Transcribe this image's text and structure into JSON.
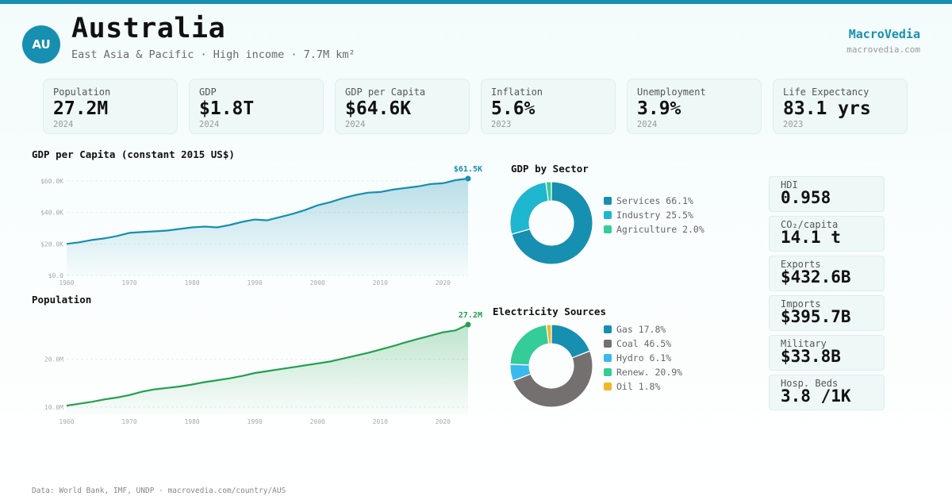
{
  "header": {
    "code": "AU",
    "country": "Australia",
    "subtitle": "East Asia & Pacific · High income · 7.7M km²",
    "brand": "MacroVedia",
    "brand_url": "macrovedia.com"
  },
  "kpis": [
    {
      "label": "Population",
      "value": "27.2M",
      "year": "2024"
    },
    {
      "label": "GDP",
      "value": "$1.8T",
      "year": "2024"
    },
    {
      "label": "GDP per Capita",
      "value": "$64.6K",
      "year": "2024"
    },
    {
      "label": "Inflation",
      "value": "5.6%",
      "year": "2023"
    },
    {
      "label": "Unemployment",
      "value": "3.9%",
      "year": "2024"
    },
    {
      "label": "Life Expectancy",
      "value": "83.1 yrs",
      "year": "2023"
    }
  ],
  "gdp_chart": {
    "title": "GDP per Capita (constant 2015 US$)",
    "end_label": "$61.5K",
    "color": "#178fb0"
  },
  "pop_chart": {
    "title": "Population",
    "end_label": "27.2M",
    "color": "#22a04e"
  },
  "sector": {
    "title": "GDP by Sector",
    "items": [
      {
        "label": "Services 66.1%",
        "value": 66.1,
        "color": "#178fb0"
      },
      {
        "label": "Industry 25.5%",
        "value": 25.5,
        "color": "#1fb6d0"
      },
      {
        "label": "Agriculture 2.0%",
        "value": 2.0,
        "color": "#34cc98"
      }
    ]
  },
  "electricity": {
    "title": "Electricity Sources",
    "items": [
      {
        "label": "Gas 17.8%",
        "value": 17.8,
        "color": "#178fb0"
      },
      {
        "label": "Coal 46.5%",
        "value": 46.5,
        "color": "#757070"
      },
      {
        "label": "Hydro 6.1%",
        "value": 6.1,
        "color": "#3ab9ee"
      },
      {
        "label": "Renew. 20.9%",
        "value": 20.9,
        "color": "#34cc98"
      },
      {
        "label": "Oil 1.8%",
        "value": 1.8,
        "color": "#f2b52a"
      }
    ]
  },
  "stats": [
    {
      "label": "HDI",
      "value": "0.958"
    },
    {
      "label": "CO₂/capita",
      "value": "14.1 t"
    },
    {
      "label": "Exports",
      "value": "$432.6B"
    },
    {
      "label": "Imports",
      "value": "$395.7B"
    },
    {
      "label": "Military",
      "value": "$33.8B"
    },
    {
      "label": "Hosp. Beds",
      "value": "3.8 /1K"
    }
  ],
  "footer": "Data: World Bank, IMF, UNDP · macrovedia.com/country/AUS",
  "chart_data": [
    {
      "type": "area",
      "title": "GDP per Capita (constant 2015 US$)",
      "x": [
        1960,
        1962,
        1964,
        1966,
        1968,
        1970,
        1972,
        1974,
        1976,
        1978,
        1980,
        1982,
        1984,
        1986,
        1988,
        1990,
        1992,
        1994,
        1996,
        1998,
        2000,
        2002,
        2004,
        2006,
        2008,
        2010,
        2012,
        2014,
        2016,
        2018,
        2020,
        2022,
        2024
      ],
      "y": [
        20.0,
        21.0,
        22.5,
        23.5,
        25.0,
        27.0,
        27.5,
        28.0,
        28.5,
        29.5,
        30.5,
        31.0,
        30.5,
        32.0,
        34.0,
        35.5,
        35.0,
        37.0,
        39.0,
        41.5,
        44.5,
        46.5,
        49.0,
        51.0,
        52.5,
        53.0,
        54.5,
        55.5,
        56.5,
        58.0,
        58.5,
        60.5,
        61.5
      ],
      "y_unit": "thousand US$",
      "x_ticks": [
        "1960",
        "1970",
        "1980",
        "1990",
        "2000",
        "2010",
        "2020"
      ],
      "y_ticks": [
        "$0.0",
        "$20.0K",
        "$40.0K",
        "$60.0K"
      ],
      "ylim": [
        0,
        62
      ],
      "end_label": "$61.5K"
    },
    {
      "type": "area",
      "title": "Population",
      "x": [
        1960,
        1962,
        1964,
        1966,
        1968,
        1970,
        1972,
        1974,
        1976,
        1978,
        1980,
        1982,
        1984,
        1986,
        1988,
        1990,
        1992,
        1994,
        1996,
        1998,
        2000,
        2002,
        2004,
        2006,
        2008,
        2010,
        2012,
        2014,
        2016,
        2018,
        2020,
        2022,
        2024
      ],
      "y": [
        10.3,
        10.7,
        11.1,
        11.6,
        12.0,
        12.5,
        13.2,
        13.7,
        14.0,
        14.3,
        14.7,
        15.2,
        15.6,
        16.0,
        16.5,
        17.1,
        17.5,
        17.9,
        18.3,
        18.7,
        19.1,
        19.5,
        20.1,
        20.7,
        21.3,
        22.0,
        22.7,
        23.5,
        24.2,
        24.9,
        25.6,
        26.0,
        27.2
      ],
      "y_unit": "million",
      "x_ticks": [
        "1960",
        "1970",
        "1980",
        "1990",
        "2000",
        "2010",
        "2020"
      ],
      "y_ticks": [
        "10.0M",
        "20.0M"
      ],
      "ylim": [
        8.5,
        27.2
      ],
      "end_label": "27.2M"
    },
    {
      "type": "pie",
      "title": "GDP by Sector",
      "labels": [
        "Services",
        "Industry",
        "Agriculture"
      ],
      "values": [
        66.1,
        25.5,
        2.0
      ]
    },
    {
      "type": "pie",
      "title": "Electricity Sources",
      "labels": [
        "Gas",
        "Coal",
        "Hydro",
        "Renew.",
        "Oil"
      ],
      "values": [
        17.8,
        46.5,
        6.1,
        20.9,
        1.8
      ]
    }
  ]
}
